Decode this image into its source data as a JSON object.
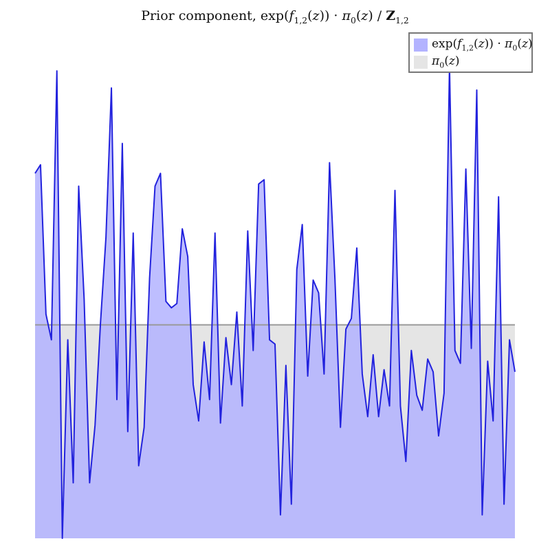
{
  "chart_data": {
    "type": "area",
    "title": "Prior component, exp(f1,2(z)) · π0(z) / Z1,2",
    "xlabel": "",
    "ylabel": "",
    "xlim": [
      0,
      180
    ],
    "ylim": [
      0,
      2.2
    ],
    "grid": false,
    "legend_position": "top-right",
    "legend": [
      "exp(f1,2(z)) · π0(z)",
      "π0(z)"
    ],
    "colors": {
      "series_fill": "#b3b3ff",
      "series_line": "#2222dd",
      "baseline_fill": "#e5e5e5",
      "baseline_line": "#999999"
    },
    "baseline_value": 1.0,
    "series": [
      {
        "name": "exp(f1,2(z)) · π0(z)",
        "values": [
          1.71,
          1.75,
          1.05,
          0.93,
          2.19,
          0.0,
          0.93,
          0.26,
          1.65,
          1.12,
          0.26,
          0.53,
          1.01,
          1.41,
          2.11,
          0.65,
          1.85,
          0.5,
          1.43,
          0.34,
          0.52,
          1.22,
          1.65,
          1.71,
          1.11,
          1.08,
          1.1,
          1.45,
          1.32,
          0.72,
          0.55,
          0.92,
          0.65,
          1.43,
          0.54,
          0.94,
          0.72,
          1.06,
          0.62,
          1.44,
          0.88,
          1.66,
          1.68,
          0.93,
          0.91,
          0.11,
          0.81,
          0.16,
          1.26,
          1.47,
          0.76,
          1.21,
          1.15,
          0.77,
          1.76,
          1.21,
          0.52,
          0.98,
          1.03,
          1.36,
          0.77,
          0.57,
          0.86,
          0.57,
          0.79,
          0.62,
          1.63,
          0.62,
          0.36,
          0.88,
          0.67,
          0.6,
          0.84,
          0.78,
          0.48,
          0.68,
          2.21,
          0.88,
          0.82,
          1.73,
          0.89,
          2.1,
          0.11,
          0.83,
          0.55,
          1.6,
          0.16,
          0.93,
          0.78
        ]
      },
      {
        "name": "π0(z)",
        "values": [
          1.0
        ]
      }
    ]
  }
}
